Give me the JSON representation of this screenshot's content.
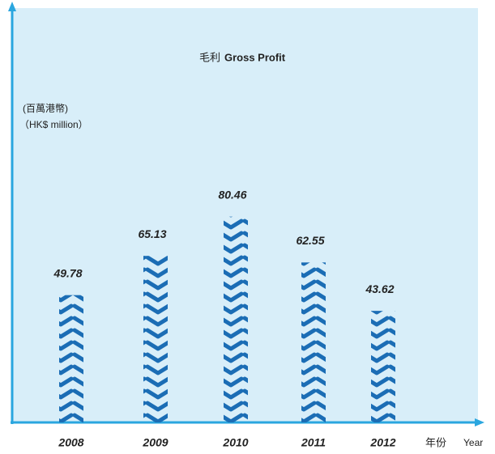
{
  "chart_data": {
    "type": "bar",
    "title": "毛利",
    "title_en": "Gross Profit",
    "unit_zh": "(百萬港幣)",
    "unit_en": "（HK$ million）",
    "x_label_zh": "年份",
    "x_label_en": "Year",
    "categories": [
      "2008",
      "2009",
      "2010",
      "2011",
      "2012"
    ],
    "values": [
      49.78,
      65.13,
      80.46,
      62.55,
      43.62
    ],
    "color": "#1b6db5",
    "ylim": [
      0,
      162
    ]
  }
}
